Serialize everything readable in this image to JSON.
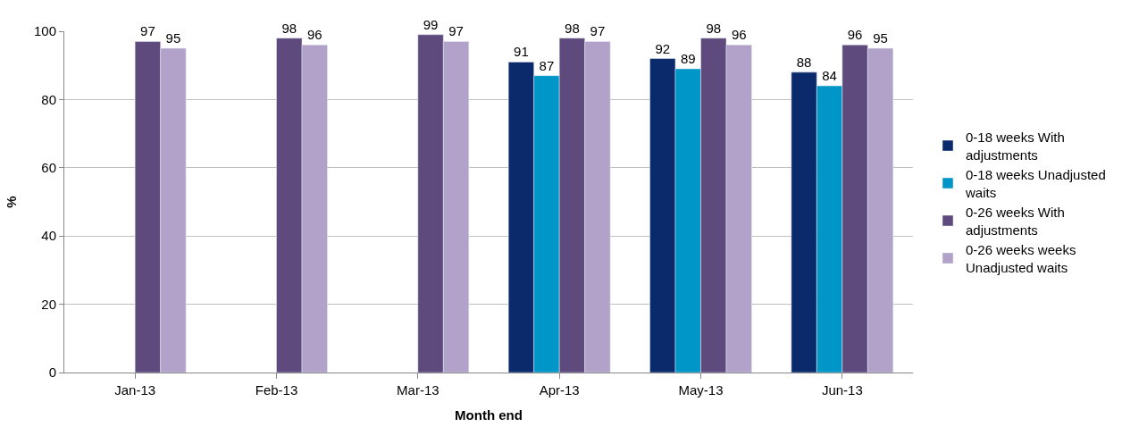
{
  "chart_data": {
    "type": "bar",
    "xlabel": "Month end",
    "ylabel": "%",
    "categories": [
      "Jan-13",
      "Feb-13",
      "Mar-13",
      "Apr-13",
      "May-13",
      "Jun-13"
    ],
    "series": [
      {
        "name": "0-18 weeks With adjustments",
        "color": "#0b2a6b",
        "values": [
          null,
          null,
          null,
          91,
          92,
          88
        ]
      },
      {
        "name": "0-18 weeks Unadjusted waits",
        "color": "#0096c8",
        "values": [
          null,
          null,
          null,
          87,
          89,
          84
        ]
      },
      {
        "name": "0-26 weeks With adjustments",
        "color": "#5e4a7c",
        "values": [
          97,
          98,
          99,
          98,
          98,
          96
        ]
      },
      {
        "name": "0-26 weeks weeks Unadjusted waits",
        "color": "#b2a2c9",
        "values": [
          95,
          96,
          97,
          97,
          96,
          95
        ]
      }
    ],
    "ylim": [
      0,
      100
    ],
    "yticks": [
      0,
      20,
      40,
      60,
      80,
      100
    ],
    "grid": "y",
    "legend": "right",
    "data_labels": true
  }
}
